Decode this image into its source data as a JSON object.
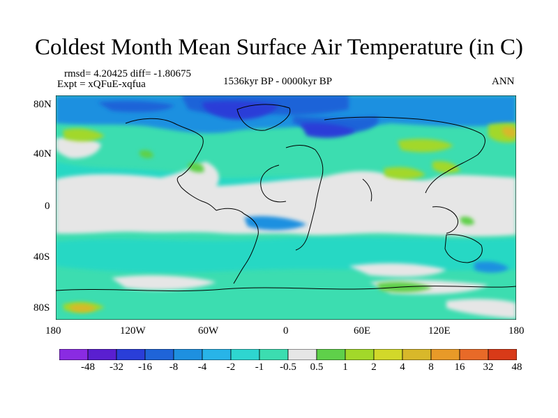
{
  "title": "Coldest Month Mean Surface Air Temperature (in C)",
  "stats": "rmsd= 4.20425  diff= -1.80675",
  "experiment": "Expt = xQFuE-xqfua",
  "period": "1536kyr BP - 0000kyr BP",
  "season": "ANN",
  "axes": {
    "y_ticks": [
      "80N",
      "40N",
      "0",
      "40S",
      "80S"
    ],
    "x_ticks": [
      "180",
      "120W",
      "60W",
      "0",
      "60E",
      "120E",
      "180"
    ]
  },
  "colorbar": {
    "labels": [
      "-48",
      "-32",
      "-16",
      "-8",
      "-4",
      "-2",
      "-1",
      "-0.5",
      "0.5",
      "1",
      "2",
      "4",
      "8",
      "16",
      "32",
      "48"
    ],
    "colors": [
      "#8a2be2",
      "#5a1fd0",
      "#2a3ed8",
      "#1f64d8",
      "#1e90e0",
      "#28b4e8",
      "#2ed6d0",
      "#3cddb0",
      "#e6e6e6",
      "#5fd04a",
      "#a2d82a",
      "#d2d82a",
      "#d8b82a",
      "#e89a28",
      "#e86a28",
      "#d83a18"
    ]
  },
  "colors": {
    "land_outline": "#000000",
    "neutral_band": "#e6e6e6"
  }
}
